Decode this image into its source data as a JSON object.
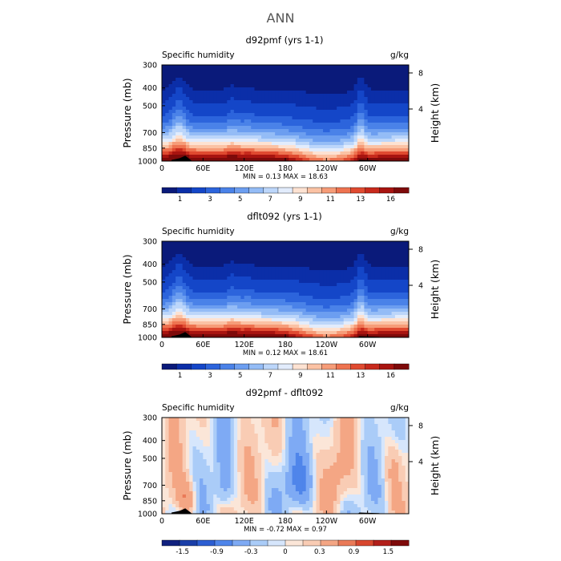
{
  "figure": {
    "title": "ANN"
  },
  "colors": {
    "abs_scale": [
      "#0a1a7a",
      "#0b2ea8",
      "#1446c8",
      "#2c64dc",
      "#4a82e8",
      "#6c9ef0",
      "#94bcf6",
      "#bcd6fa",
      "#e2ecfc",
      "#fde2d2",
      "#fbc2a4",
      "#f69c78",
      "#ee7350",
      "#e04a30",
      "#c82a1c",
      "#a81410",
      "#7e0a0a"
    ],
    "diff_scale": [
      "#10207e",
      "#1a3ea8",
      "#2c5ed2",
      "#4f85ea",
      "#7eaaf4",
      "#aaccf8",
      "#d6e6fc",
      "#fbe6d8",
      "#f9ccb4",
      "#f4a684",
      "#ea7a58",
      "#d8472e",
      "#b21f1a",
      "#7e0a0a"
    ]
  },
  "chart_data": [
    {
      "type": "heatmap",
      "title": "d92pmf (yrs 1-1)",
      "variable_label": "Specific humidity",
      "units_label": "g/kg",
      "ylabel": "Pressure (mb)",
      "ylabel_right": "Height (km)",
      "x_ticks": [
        "0",
        "60E",
        "120E",
        "180",
        "120W",
        "60W"
      ],
      "y_ticks": [
        "300",
        "400",
        "500",
        "700",
        "850",
        "1000"
      ],
      "height_ticks": [
        "8",
        "4"
      ],
      "xlim": [
        0,
        360
      ],
      "ylim": [
        1000,
        300
      ],
      "stats_text": "MIN =    0.13   MAX =   18.63",
      "min": 0.13,
      "max": 18.63,
      "colorbar_labels": [
        "1",
        "3",
        "5",
        "7",
        "9",
        "11",
        "13",
        "16"
      ]
    },
    {
      "type": "heatmap",
      "title": "dflt092 (yrs 1-1)",
      "variable_label": "Specific humidity",
      "units_label": "g/kg",
      "ylabel": "Pressure (mb)",
      "ylabel_right": "Height (km)",
      "x_ticks": [
        "0",
        "60E",
        "120E",
        "180",
        "120W",
        "60W"
      ],
      "y_ticks": [
        "300",
        "400",
        "500",
        "700",
        "850",
        "1000"
      ],
      "height_ticks": [
        "8",
        "4"
      ],
      "xlim": [
        0,
        360
      ],
      "ylim": [
        1000,
        300
      ],
      "stats_text": "MIN =    0.12   MAX =   18.61",
      "min": 0.12,
      "max": 18.61,
      "colorbar_labels": [
        "1",
        "3",
        "5",
        "7",
        "9",
        "11",
        "13",
        "16"
      ]
    },
    {
      "type": "heatmap",
      "title": "d92pmf - dflt092",
      "variable_label": "Specific humidity",
      "units_label": "g/kg",
      "ylabel": "Pressure (mb)",
      "ylabel_right": "Height (km)",
      "x_ticks": [
        "0",
        "60E",
        "120E",
        "180",
        "120W",
        "60W"
      ],
      "y_ticks": [
        "300",
        "400",
        "500",
        "700",
        "850",
        "1000"
      ],
      "height_ticks": [
        "8",
        "4"
      ],
      "xlim": [
        0,
        360
      ],
      "ylim": [
        1000,
        300
      ],
      "stats_text": "MIN =   -0.72   MAX =    0.97",
      "min": -0.72,
      "max": 0.97,
      "colorbar_labels": [
        "-1.5",
        "-0.9",
        "-0.3",
        "0",
        "0.3",
        "0.9",
        "1.5"
      ]
    }
  ]
}
